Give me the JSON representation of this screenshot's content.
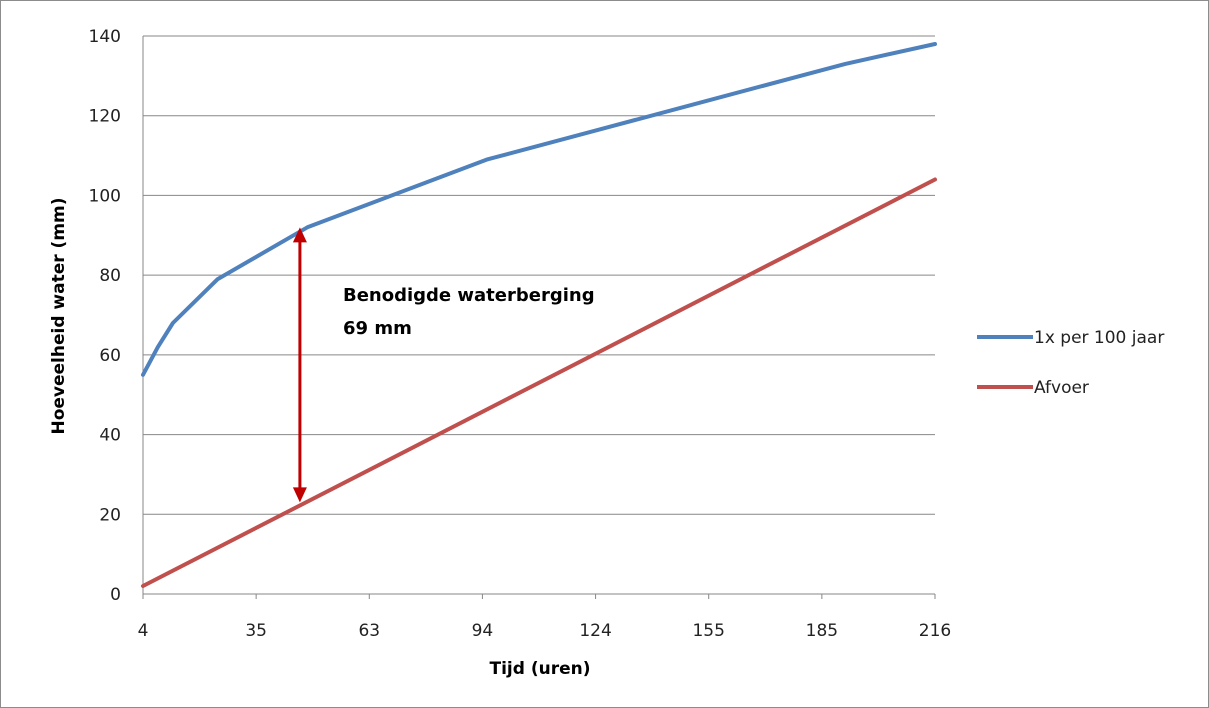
{
  "chart_data": {
    "type": "line",
    "title": "",
    "xlabel": "Tijd (uren)",
    "ylabel": "Hoeveelheid water (mm)",
    "ylim": [
      0,
      140
    ],
    "yticks": [
      0,
      20,
      40,
      60,
      80,
      100,
      120,
      140
    ],
    "xlim": [
      4,
      216
    ],
    "xtick_labels": [
      "4",
      "35",
      "63",
      "94",
      "124",
      "155",
      "185",
      "216"
    ],
    "grid": true,
    "legend": "right",
    "series": [
      {
        "name": "1x per 100 jaar",
        "color": "#4f81bd",
        "x": [
          4,
          8,
          12,
          24,
          48,
          96,
          192,
          216
        ],
        "y": [
          55,
          62,
          68,
          79,
          92,
          109,
          133,
          138
        ]
      },
      {
        "name": "Afvoer",
        "color": "#c0504d",
        "x": [
          4,
          216
        ],
        "y": [
          2,
          104
        ]
      }
    ],
    "annotation": {
      "line1": "Benodigde waterberging",
      "line2": "69 mm",
      "x": 46,
      "y_from": 92,
      "y_to": 23,
      "color": "#c00000"
    }
  }
}
